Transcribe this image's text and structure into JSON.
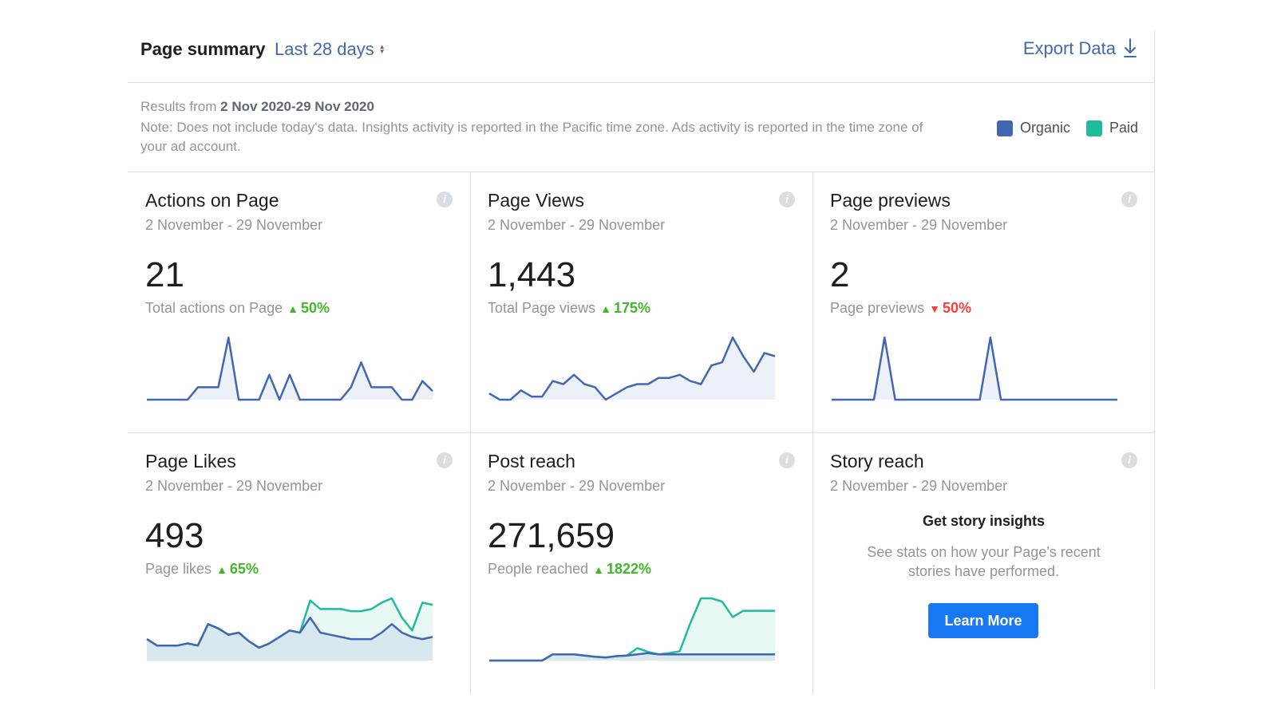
{
  "header": {
    "title": "Page summary",
    "range_label": "Last 28 days",
    "export_label": "Export Data"
  },
  "info": {
    "results_prefix": "Results from",
    "results_range": "2 Nov 2020-29 Nov 2020",
    "note": "Note: Does not include today's data. Insights activity is reported in the Pacific time zone. Ads activity is reported in the time zone of your ad account."
  },
  "legend": [
    {
      "label": "Organic",
      "color": "#4267b2"
    },
    {
      "label": "Paid",
      "color": "#1fbc9c"
    }
  ],
  "colors": {
    "organic": "#4267b2",
    "paid": "#1fbc9c",
    "trend_up": "#42b72a",
    "trend_down": "#fa3e3e"
  },
  "cards": [
    {
      "title": "Actions on Page",
      "date_range": "2 November - 29 November",
      "value": "21",
      "metric_label": "Total actions on Page",
      "change": "50%",
      "direction": "up",
      "chart_data": {
        "type": "area",
        "series": [
          {
            "key": "organic",
            "values": [
              0,
              0,
              0,
              0,
              0,
              1,
              1,
              1,
              5,
              0,
              0,
              0,
              2,
              0,
              2,
              0,
              0,
              0,
              0,
              0,
              1,
              3,
              1,
              1,
              1,
              0,
              0,
              1.5,
              0.7
            ]
          }
        ]
      }
    },
    {
      "title": "Page Views",
      "date_range": "2 November - 29 November",
      "value": "1,443",
      "metric_label": "Total Page views",
      "change": "175%",
      "direction": "up",
      "chart_data": {
        "type": "area",
        "series": [
          {
            "key": "organic",
            "values": [
              2,
              0,
              0,
              3,
              1,
              1,
              6,
              5,
              8,
              5,
              4,
              0,
              2,
              4,
              5,
              5,
              7,
              7,
              8,
              6,
              5,
              11,
              12,
              20,
              14,
              9,
              15,
              14
            ]
          }
        ]
      }
    },
    {
      "title": "Page previews",
      "date_range": "2 November - 29 November",
      "value": "2",
      "metric_label": "Page previews",
      "change": "50%",
      "direction": "down",
      "chart_data": {
        "type": "area",
        "series": [
          {
            "key": "organic",
            "values": [
              0,
              0,
              0,
              0,
              0,
              1,
              0,
              0,
              0,
              0,
              0,
              0,
              0,
              0,
              0,
              1,
              0,
              0,
              0,
              0,
              0,
              0,
              0,
              0,
              0,
              0,
              0,
              0
            ]
          }
        ]
      }
    },
    {
      "title": "Page Likes",
      "date_range": "2 November - 29 November",
      "value": "493",
      "metric_label": "Page likes",
      "change": "65%",
      "direction": "up",
      "chart_data": {
        "type": "area",
        "series": [
          {
            "key": "organic",
            "values": [
              10,
              7,
              7,
              7,
              8,
              7,
              17,
              15,
              12,
              13,
              9,
              6,
              8,
              11,
              14,
              13,
              20,
              13,
              12,
              11,
              10,
              10,
              10,
              13,
              17,
              13,
              11,
              10,
              11
            ]
          },
          {
            "key": "paid",
            "values": [
              10,
              7,
              7,
              7,
              8,
              7,
              17,
              15,
              12,
              13,
              9,
              6,
              8,
              11,
              14,
              13,
              28,
              24,
              24,
              24,
              23,
              23,
              24,
              27,
              29,
              20,
              14,
              27,
              26
            ]
          }
        ]
      }
    },
    {
      "title": "Post reach",
      "date_range": "2 November - 29 November",
      "value": "271,659",
      "metric_label": "People reached",
      "change": "1822%",
      "direction": "up",
      "chart_data": {
        "type": "area",
        "series": [
          {
            "key": "organic",
            "values": [
              0,
              0,
              0,
              0,
              0,
              0,
              1,
              1,
              1,
              0.8,
              0.6,
              0.5,
              0.7,
              0.8,
              1,
              1.2,
              1,
              1,
              1,
              1,
              1,
              1,
              1,
              1,
              1,
              1,
              1,
              1
            ]
          },
          {
            "key": "paid",
            "values": [
              0,
              0,
              0,
              0,
              0,
              0,
              1,
              1,
              1,
              0.8,
              0.6,
              0.5,
              0.7,
              0.8,
              2,
              1.4,
              1,
              1.2,
              1.5,
              6,
              10,
              10,
              9.5,
              7,
              8,
              8,
              8,
              8
            ]
          }
        ]
      }
    }
  ],
  "story": {
    "title": "Story reach",
    "date_range": "2 November - 29 November",
    "heading": "Get story insights",
    "description": "See stats on how your Page's recent stories have performed.",
    "button_label": "Learn More"
  }
}
